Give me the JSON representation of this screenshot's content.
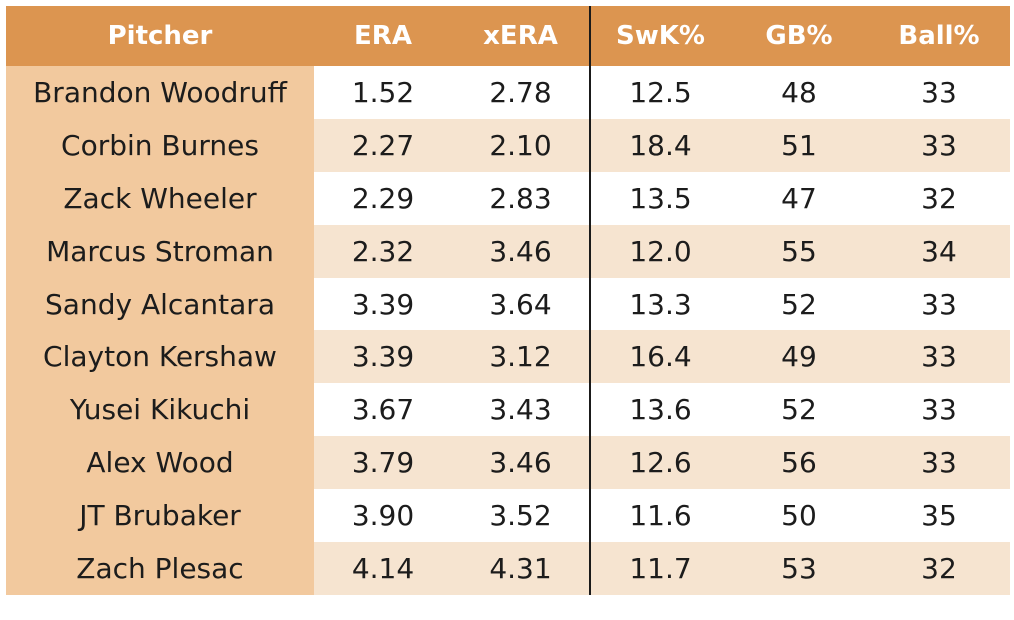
{
  "chart_data": {
    "type": "table",
    "columns": [
      "Pitcher",
      "ERA",
      "xERA",
      "SwK%",
      "GB%",
      "Ball%"
    ],
    "rows": [
      [
        "Brandon Woodruff",
        "1.52",
        "2.78",
        "12.5",
        "48",
        "33"
      ],
      [
        "Corbin Burnes",
        "2.27",
        "2.10",
        "18.4",
        "51",
        "33"
      ],
      [
        "Zack Wheeler",
        "2.29",
        "2.83",
        "13.5",
        "47",
        "32"
      ],
      [
        "Marcus Stroman",
        "2.32",
        "3.46",
        "12.0",
        "55",
        "34"
      ],
      [
        "Sandy Alcantara",
        "3.39",
        "3.64",
        "13.3",
        "52",
        "33"
      ],
      [
        "Clayton Kershaw",
        "3.39",
        "3.12",
        "16.4",
        "49",
        "33"
      ],
      [
        "Yusei Kikuchi",
        "3.67",
        "3.43",
        "13.6",
        "52",
        "33"
      ],
      [
        "Alex Wood",
        "3.79",
        "3.46",
        "12.6",
        "56",
        "33"
      ],
      [
        "JT Brubaker",
        "3.90",
        "3.52",
        "11.6",
        "50",
        "35"
      ],
      [
        "Zach Plesac",
        "4.14",
        "4.31",
        "11.7",
        "53",
        "32"
      ]
    ]
  },
  "colors": {
    "header_bg": "#dc9550",
    "header_text": "#ffffff",
    "name_column_bg": "#f2c99e",
    "row_alt_bg": "#f6e4d0",
    "row_bg": "#ffffff",
    "separator": "#1a1a1a"
  }
}
